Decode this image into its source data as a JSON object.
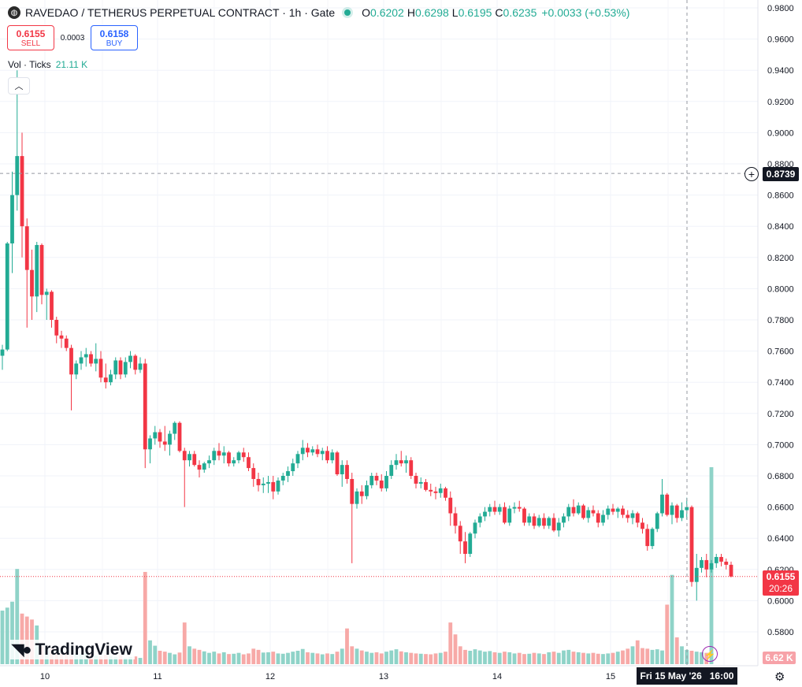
{
  "header": {
    "symbol_title": "RAVEDAO / TETHERUS PERPETUAL CONTRACT · 1h · Gate",
    "open_label": "O",
    "open_value": "0.6202",
    "high_label": "H",
    "high_value": "0.6298",
    "low_label": "L",
    "low_value": "0.6195",
    "close_label": "C",
    "close_value": "0.6235",
    "change": "+0.0033 (+0.53%)"
  },
  "trade": {
    "sell_price": "0.6155",
    "sell_label": "SELL",
    "spread": "0.0003",
    "buy_price": "0.6158",
    "buy_label": "BUY"
  },
  "volume_legend": {
    "label": "Vol · Ticks",
    "value": "21.11 K"
  },
  "crosshair": {
    "price": "0.8739",
    "time": "Fri 15 May '26   16:00"
  },
  "last_price": {
    "price": "0.6155",
    "countdown": "20:26"
  },
  "volume_badge": "6.62 K",
  "logo_text": "TradingView",
  "colors": {
    "up": "#22ab94",
    "down": "#f23645",
    "up_vol": "#8fd3c8",
    "down_vol": "#f7a9a7"
  },
  "icons": [
    "ravedao-logo-icon",
    "tradingview-logo-icon",
    "plus-circle-icon",
    "bolt-icon",
    "gear-icon",
    "chevron-up-icon"
  ],
  "chart_data": {
    "type": "candlestick",
    "y_ticks": [
      "0.9800",
      "0.9600",
      "0.9400",
      "0.9200",
      "0.9000",
      "0.8800",
      "0.8600",
      "0.8400",
      "0.8200",
      "0.8000",
      "0.7800",
      "0.7600",
      "0.7400",
      "0.7200",
      "0.7000",
      "0.6800",
      "0.6600",
      "0.6400",
      "0.6200",
      "0.6000",
      "0.5800"
    ],
    "x_ticks": [
      "10",
      "11",
      "12",
      "13",
      "14",
      "15"
    ],
    "ylim": [
      0.573,
      0.986
    ],
    "grid": true,
    "candles": [
      [
        0.757,
        0.764,
        0.748,
        0.761
      ],
      [
        0.761,
        0.83,
        0.76,
        0.829
      ],
      [
        0.829,
        0.875,
        0.81,
        0.86
      ],
      [
        0.86,
        0.94,
        0.85,
        0.885
      ],
      [
        0.885,
        0.9,
        0.82,
        0.84
      ],
      [
        0.84,
        0.845,
        0.775,
        0.812
      ],
      [
        0.812,
        0.825,
        0.78,
        0.795
      ],
      [
        0.795,
        0.83,
        0.785,
        0.828
      ],
      [
        0.828,
        0.829,
        0.79,
        0.796
      ],
      [
        0.796,
        0.8,
        0.78,
        0.798
      ],
      [
        0.798,
        0.799,
        0.775,
        0.78
      ],
      [
        0.78,
        0.782,
        0.765,
        0.77
      ],
      [
        0.77,
        0.773,
        0.762,
        0.768
      ],
      [
        0.768,
        0.77,
        0.76,
        0.762
      ],
      [
        0.762,
        0.764,
        0.722,
        0.745
      ],
      [
        0.745,
        0.754,
        0.742,
        0.752
      ],
      [
        0.752,
        0.76,
        0.748,
        0.756
      ],
      [
        0.756,
        0.762,
        0.75,
        0.758
      ],
      [
        0.758,
        0.76,
        0.75,
        0.752
      ],
      [
        0.752,
        0.765,
        0.747,
        0.755
      ],
      [
        0.755,
        0.76,
        0.74,
        0.743
      ],
      [
        0.743,
        0.752,
        0.736,
        0.74
      ],
      [
        0.74,
        0.748,
        0.738,
        0.745
      ],
      [
        0.745,
        0.756,
        0.742,
        0.754
      ],
      [
        0.754,
        0.756,
        0.742,
        0.745
      ],
      [
        0.745,
        0.756,
        0.743,
        0.753
      ],
      [
        0.753,
        0.76,
        0.749,
        0.757
      ],
      [
        0.757,
        0.758,
        0.745,
        0.748
      ],
      [
        0.748,
        0.756,
        0.746,
        0.752
      ],
      [
        0.752,
        0.755,
        0.685,
        0.697
      ],
      [
        0.697,
        0.706,
        0.688,
        0.704
      ],
      [
        0.704,
        0.712,
        0.7,
        0.708
      ],
      [
        0.708,
        0.71,
        0.698,
        0.702
      ],
      [
        0.702,
        0.712,
        0.696,
        0.7
      ],
      [
        0.7,
        0.709,
        0.693,
        0.707
      ],
      [
        0.707,
        0.715,
        0.703,
        0.714
      ],
      [
        0.714,
        0.715,
        0.695,
        0.696
      ],
      [
        0.696,
        0.698,
        0.66,
        0.69
      ],
      [
        0.69,
        0.696,
        0.686,
        0.694
      ],
      [
        0.694,
        0.696,
        0.686,
        0.687
      ],
      [
        0.687,
        0.69,
        0.679,
        0.684
      ],
      [
        0.684,
        0.689,
        0.682,
        0.688
      ],
      [
        0.688,
        0.693,
        0.685,
        0.69
      ],
      [
        0.69,
        0.698,
        0.687,
        0.696
      ],
      [
        0.696,
        0.701,
        0.69,
        0.693
      ],
      [
        0.693,
        0.699,
        0.688,
        0.695
      ],
      [
        0.695,
        0.696,
        0.686,
        0.688
      ],
      [
        0.688,
        0.692,
        0.686,
        0.69
      ],
      [
        0.69,
        0.696,
        0.688,
        0.695
      ],
      [
        0.695,
        0.698,
        0.689,
        0.692
      ],
      [
        0.692,
        0.695,
        0.683,
        0.685
      ],
      [
        0.685,
        0.688,
        0.673,
        0.678
      ],
      [
        0.678,
        0.682,
        0.67,
        0.674
      ],
      [
        0.674,
        0.679,
        0.669,
        0.675
      ],
      [
        0.675,
        0.68,
        0.669,
        0.676
      ],
      [
        0.676,
        0.68,
        0.665,
        0.67
      ],
      [
        0.67,
        0.679,
        0.668,
        0.677
      ],
      [
        0.677,
        0.682,
        0.674,
        0.68
      ],
      [
        0.68,
        0.686,
        0.676,
        0.683
      ],
      [
        0.683,
        0.691,
        0.68,
        0.688
      ],
      [
        0.688,
        0.696,
        0.685,
        0.694
      ],
      [
        0.694,
        0.703,
        0.69,
        0.698
      ],
      [
        0.698,
        0.701,
        0.692,
        0.695
      ],
      [
        0.695,
        0.699,
        0.693,
        0.697
      ],
      [
        0.697,
        0.7,
        0.692,
        0.694
      ],
      [
        0.694,
        0.698,
        0.69,
        0.696
      ],
      [
        0.696,
        0.699,
        0.688,
        0.69
      ],
      [
        0.69,
        0.697,
        0.688,
        0.695
      ],
      [
        0.695,
        0.696,
        0.68,
        0.681
      ],
      [
        0.681,
        0.69,
        0.673,
        0.687
      ],
      [
        0.687,
        0.69,
        0.675,
        0.678
      ],
      [
        0.678,
        0.682,
        0.624,
        0.662
      ],
      [
        0.662,
        0.672,
        0.659,
        0.67
      ],
      [
        0.67,
        0.674,
        0.662,
        0.667
      ],
      [
        0.667,
        0.677,
        0.665,
        0.674
      ],
      [
        0.674,
        0.682,
        0.672,
        0.68
      ],
      [
        0.68,
        0.682,
        0.674,
        0.677
      ],
      [
        0.677,
        0.681,
        0.67,
        0.672
      ],
      [
        0.672,
        0.683,
        0.67,
        0.68
      ],
      [
        0.68,
        0.69,
        0.678,
        0.687
      ],
      [
        0.687,
        0.694,
        0.684,
        0.69
      ],
      [
        0.69,
        0.696,
        0.686,
        0.688
      ],
      [
        0.688,
        0.693,
        0.682,
        0.69
      ],
      [
        0.69,
        0.692,
        0.678,
        0.68
      ],
      [
        0.68,
        0.682,
        0.672,
        0.675
      ],
      [
        0.675,
        0.679,
        0.672,
        0.676
      ],
      [
        0.676,
        0.678,
        0.67,
        0.671
      ],
      [
        0.671,
        0.675,
        0.667,
        0.67
      ],
      [
        0.67,
        0.673,
        0.665,
        0.669
      ],
      [
        0.669,
        0.675,
        0.666,
        0.672
      ],
      [
        0.672,
        0.673,
        0.664,
        0.666
      ],
      [
        0.666,
        0.67,
        0.648,
        0.656
      ],
      [
        0.656,
        0.66,
        0.643,
        0.648
      ],
      [
        0.648,
        0.651,
        0.63,
        0.638
      ],
      [
        0.638,
        0.644,
        0.624,
        0.63
      ],
      [
        0.63,
        0.644,
        0.628,
        0.643
      ],
      [
        0.643,
        0.652,
        0.64,
        0.65
      ],
      [
        0.65,
        0.656,
        0.647,
        0.654
      ],
      [
        0.654,
        0.66,
        0.651,
        0.657
      ],
      [
        0.657,
        0.662,
        0.654,
        0.66
      ],
      [
        0.66,
        0.664,
        0.655,
        0.657
      ],
      [
        0.657,
        0.662,
        0.655,
        0.66
      ],
      [
        0.66,
        0.663,
        0.649,
        0.65
      ],
      [
        0.65,
        0.661,
        0.648,
        0.659
      ],
      [
        0.659,
        0.663,
        0.656,
        0.66
      ],
      [
        0.66,
        0.664,
        0.657,
        0.659
      ],
      [
        0.659,
        0.66,
        0.648,
        0.65
      ],
      [
        0.65,
        0.656,
        0.648,
        0.654
      ],
      [
        0.654,
        0.656,
        0.646,
        0.648
      ],
      [
        0.648,
        0.655,
        0.647,
        0.653
      ],
      [
        0.653,
        0.656,
        0.646,
        0.648
      ],
      [
        0.648,
        0.654,
        0.646,
        0.653
      ],
      [
        0.653,
        0.656,
        0.644,
        0.645
      ],
      [
        0.645,
        0.653,
        0.641,
        0.65
      ],
      [
        0.65,
        0.656,
        0.647,
        0.654
      ],
      [
        0.654,
        0.662,
        0.651,
        0.66
      ],
      [
        0.66,
        0.665,
        0.654,
        0.656
      ],
      [
        0.656,
        0.663,
        0.655,
        0.661
      ],
      [
        0.661,
        0.662,
        0.652,
        0.653
      ],
      [
        0.653,
        0.66,
        0.65,
        0.658
      ],
      [
        0.658,
        0.661,
        0.654,
        0.656
      ],
      [
        0.656,
        0.658,
        0.647,
        0.65
      ],
      [
        0.65,
        0.658,
        0.648,
        0.655
      ],
      [
        0.655,
        0.661,
        0.652,
        0.659
      ],
      [
        0.659,
        0.662,
        0.655,
        0.657
      ],
      [
        0.657,
        0.66,
        0.653,
        0.659
      ],
      [
        0.659,
        0.661,
        0.653,
        0.655
      ],
      [
        0.655,
        0.658,
        0.65,
        0.653
      ],
      [
        0.653,
        0.658,
        0.649,
        0.656
      ],
      [
        0.656,
        0.657,
        0.647,
        0.65
      ],
      [
        0.65,
        0.653,
        0.643,
        0.646
      ],
      [
        0.646,
        0.649,
        0.632,
        0.635
      ],
      [
        0.635,
        0.647,
        0.633,
        0.646
      ],
      [
        0.646,
        0.657,
        0.644,
        0.656
      ],
      [
        0.656,
        0.678,
        0.654,
        0.668
      ],
      [
        0.668,
        0.669,
        0.654,
        0.655
      ],
      [
        0.655,
        0.663,
        0.649,
        0.661
      ],
      [
        0.661,
        0.662,
        0.65,
        0.653
      ],
      [
        0.653,
        0.663,
        0.651,
        0.658
      ],
      [
        0.658,
        0.666,
        0.652,
        0.66
      ],
      [
        0.66,
        0.661,
        0.609,
        0.612
      ],
      [
        0.612,
        0.63,
        0.6,
        0.621
      ],
      [
        0.621,
        0.628,
        0.618,
        0.626
      ],
      [
        0.626,
        0.63,
        0.615,
        0.62
      ],
      [
        0.62,
        0.626,
        0.618,
        0.624
      ],
      [
        0.624,
        0.63,
        0.621,
        0.628
      ],
      [
        0.628,
        0.63,
        0.622,
        0.625
      ],
      [
        0.625,
        0.627,
        0.62,
        0.623
      ],
      [
        0.623,
        0.625,
        0.615,
        0.6155
      ]
    ],
    "volume": [
      1800,
      1900,
      2100,
      3200,
      1700,
      1600,
      1500,
      1300,
      600,
      550,
      520,
      400,
      350,
      420,
      300,
      360,
      340,
      380,
      350,
      290,
      260,
      310,
      280,
      250,
      300,
      220,
      240,
      260,
      210,
      3100,
      800,
      620,
      450,
      420,
      380,
      330,
      390,
      1400,
      600,
      520,
      480,
      430,
      380,
      420,
      360,
      400,
      340,
      350,
      380,
      330,
      360,
      520,
      480,
      390,
      400,
      420,
      360,
      350,
      380,
      420,
      450,
      510,
      400,
      380,
      360,
      330,
      360,
      340,
      420,
      520,
      1200,
      600,
      520,
      460,
      420,
      380,
      400,
      360,
      420,
      460,
      500,
      430,
      400,
      380,
      360,
      350,
      340,
      330,
      360,
      380,
      420,
      1400,
      1000,
      600,
      480,
      450,
      500,
      460,
      420,
      440,
      400,
      380,
      420,
      400,
      360,
      380,
      340,
      350,
      380,
      360,
      340,
      400,
      420,
      380,
      460,
      480,
      420,
      400,
      380,
      360,
      380,
      350,
      340,
      360,
      380,
      420,
      460,
      520,
      600,
      800,
      540,
      520,
      480,
      500,
      460,
      2000,
      3000,
      900,
      600,
      480,
      450,
      420,
      400,
      380,
      6620
    ]
  }
}
